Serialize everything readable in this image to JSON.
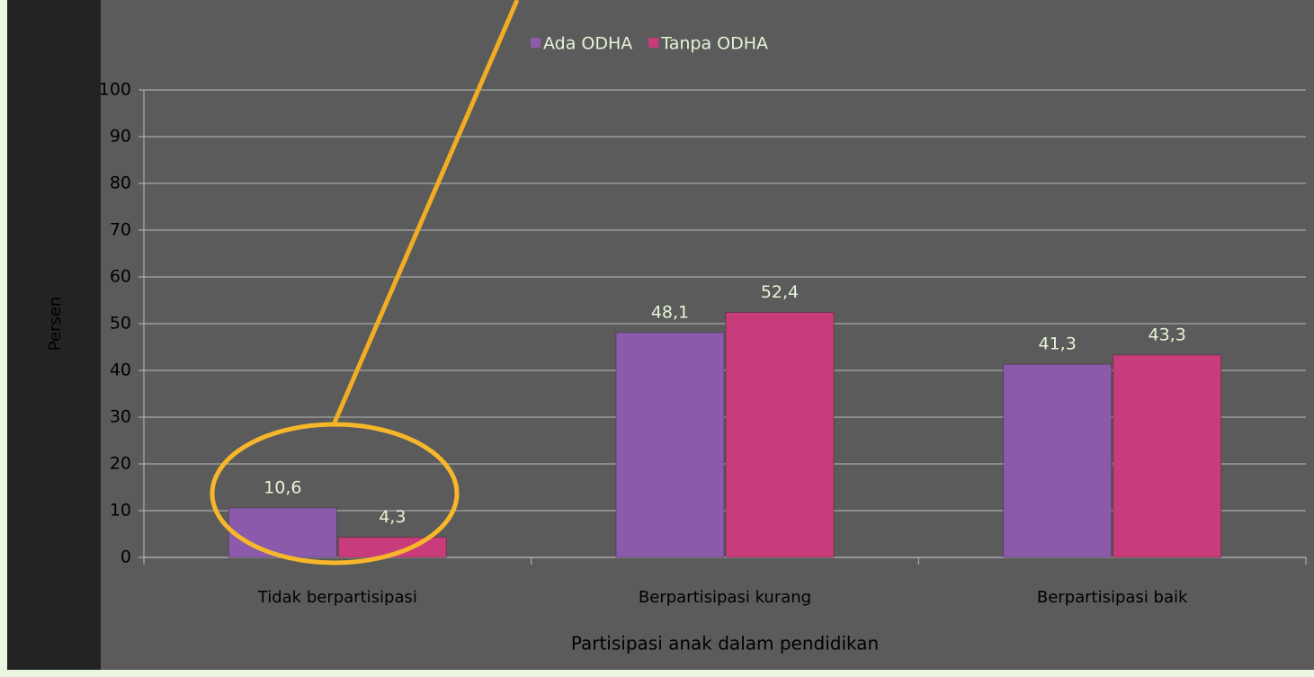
{
  "chart_data": {
    "type": "bar",
    "x_label": "Partisipasi anak dalam pendidikan",
    "y_label": "Persen",
    "categories": [
      "Tidak berpartisipasi",
      "Berpartisipasi kurang",
      "Berpartisipasi baik"
    ],
    "series": [
      {
        "name": "Ada ODHA",
        "color": "#8c5aaa",
        "values": [
          10.6,
          48.1,
          41.3
        ],
        "value_labels": [
          "10,6",
          "48,1",
          "41,3"
        ]
      },
      {
        "name": "Tanpa ODHA",
        "color": "#c93c7c",
        "values": [
          4.3,
          52.4,
          43.3
        ],
        "value_labels": [
          "4,3",
          "52,4",
          "43,3"
        ]
      }
    ],
    "ylim": [
      0,
      100
    ],
    "yticks": [
      0,
      10,
      20,
      30,
      40,
      50,
      60,
      70,
      80,
      90,
      100
    ],
    "grid": true,
    "legend": "top"
  }
}
